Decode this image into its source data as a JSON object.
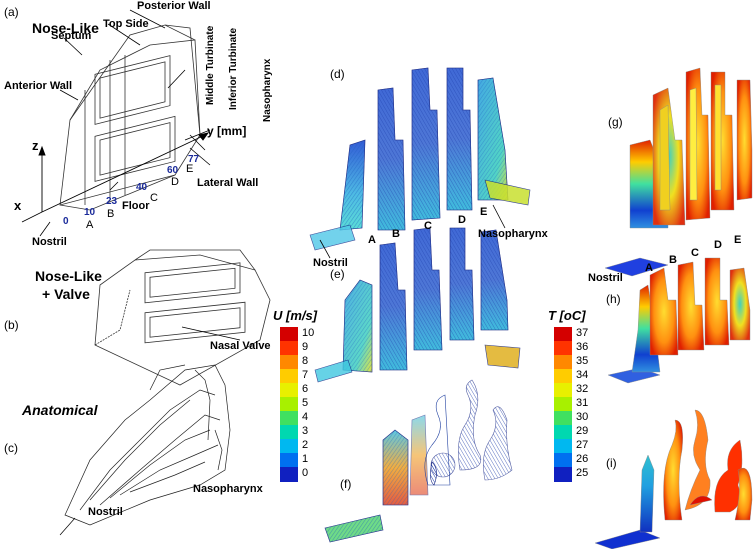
{
  "panels": {
    "a": "(a)",
    "b": "(b)",
    "c": "(c)",
    "d": "(d)",
    "e": "(e)",
    "f": "(f)",
    "g": "(g)",
    "h": "(h)",
    "i": "(i)"
  },
  "model_a": {
    "title": "Nose-Like",
    "posterior_wall": "Posterior Wall",
    "top_side": "Top Side",
    "septum": "Septum",
    "middle_turbinate": "Middle Turbinate",
    "inferior_turbinate": "Inferior Turbinate",
    "nasopharynx": "Nasopharynx",
    "anterior_wall": "Anterior Wall",
    "y_mm": "y [mm]",
    "lateral_wall": "Lateral Wall",
    "floor": "Floor",
    "nostril": "Nostril",
    "z": "z",
    "x": "x",
    "pos": [
      "0",
      "10",
      "23",
      "40",
      "60",
      "77"
    ],
    "sec": [
      "A",
      "B",
      "C",
      "D",
      "E"
    ]
  },
  "model_b": {
    "title_1": "Nose-Like",
    "title_2": "+ Valve",
    "nasal_valve": "Nasal Valve"
  },
  "model_c": {
    "title": "Anatomical",
    "nasopharynx": "Nasopharynx",
    "nostril": "Nostril"
  },
  "panel_d": {
    "nostril": "Nostril",
    "nasopharynx": "Nasopharynx",
    "sec": [
      "A",
      "B",
      "C",
      "D",
      "E"
    ]
  },
  "panel_g": {
    "nostril": "Nostril",
    "sec": [
      "A",
      "B",
      "C",
      "D",
      "E"
    ]
  },
  "colorbar_u": {
    "title": "U [m/s]",
    "ticks": [
      "10",
      "9",
      "8",
      "7",
      "6",
      "5",
      "4",
      "3",
      "2",
      "1",
      "0"
    ],
    "colors": [
      "#d40000",
      "#ff3300",
      "#ff8800",
      "#ffcc00",
      "#e8f000",
      "#a8f000",
      "#40e060",
      "#00d8b0",
      "#00b8f0",
      "#0070f0",
      "#1020c0"
    ]
  },
  "colorbar_t": {
    "title": "T [oC]",
    "ticks": [
      "37",
      "36",
      "35",
      "34",
      "32",
      "31",
      "30",
      "29",
      "27",
      "26",
      "25"
    ],
    "colors": [
      "#d40000",
      "#ff3300",
      "#ff8800",
      "#ffcc00",
      "#e8f000",
      "#a8f000",
      "#40e060",
      "#00d8b0",
      "#00b8f0",
      "#0070f0",
      "#1020c0"
    ]
  }
}
